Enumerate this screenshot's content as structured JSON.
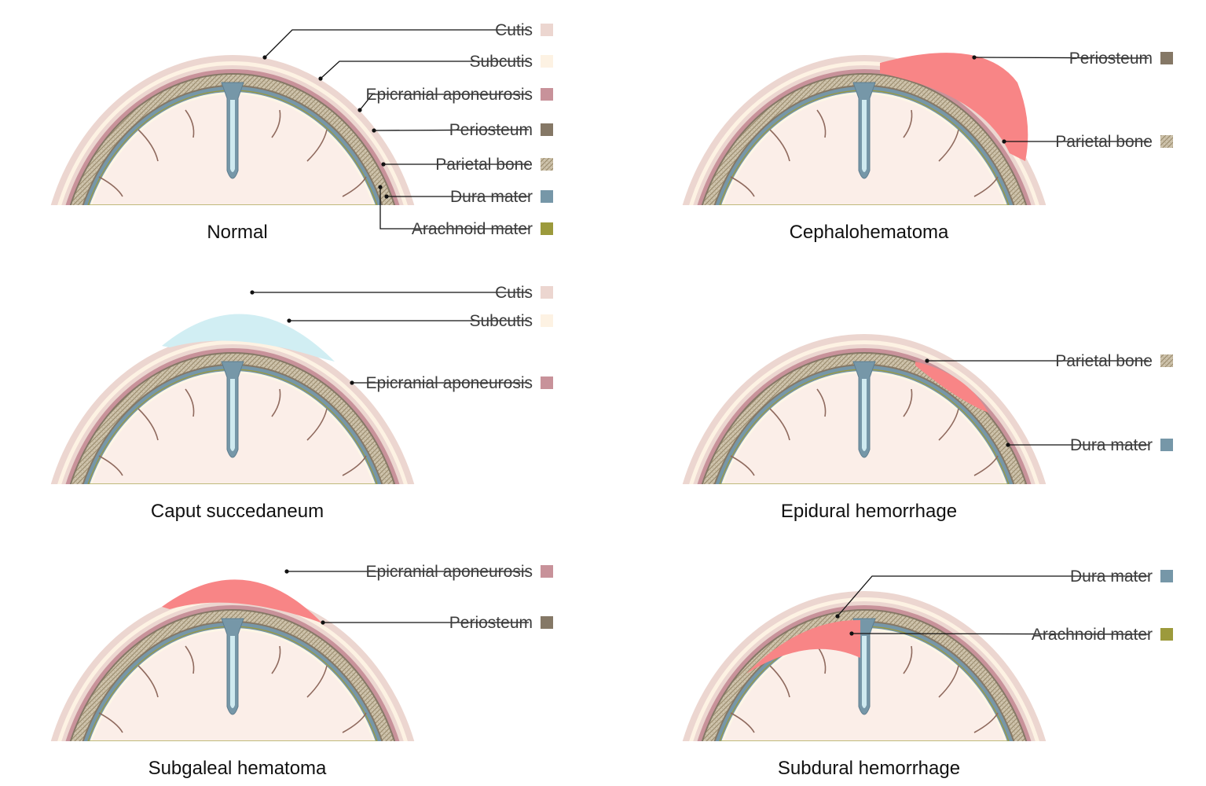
{
  "layer_colors": {
    "cutis": "#ecd6d0",
    "subcutis": "#fdf2e3",
    "epicranial_aponeurosis": "#c8929a",
    "periosteum": "#857866",
    "parietal_bone": "#b3a68d",
    "dura_mater": "#7697a8",
    "arachnoid_mater": "#9c9a3c",
    "brain": "#fbeee8",
    "blood": "#f88586",
    "fluid": "#d1eef3"
  },
  "panels": [
    {
      "id": "normal",
      "title": "Normal",
      "labels": [
        "Cutis",
        "Subcutis",
        "Epicranial aponeurosis",
        "Periosteum",
        "Parietal bone",
        "Dura mater",
        "Arachnoid mater"
      ]
    },
    {
      "id": "cephalohematoma",
      "title": "Cephalohematoma",
      "labels": [
        "Periosteum",
        "Parietal bone"
      ]
    },
    {
      "id": "caput",
      "title": "Caput succedaneum",
      "labels": [
        "Cutis",
        "Subcutis",
        "Epicranial aponeurosis"
      ]
    },
    {
      "id": "epidural",
      "title": "Epidural hemorrhage",
      "labels": [
        "Parietal bone",
        "Dura mater"
      ]
    },
    {
      "id": "subgaleal",
      "title": "Subgaleal hematoma",
      "labels": [
        "Epicranial aponeurosis",
        "Periosteum"
      ]
    },
    {
      "id": "subdural",
      "title": "Subdural hemorrhage",
      "labels": [
        "Dura mater",
        "Arachnoid mater"
      ]
    }
  ]
}
